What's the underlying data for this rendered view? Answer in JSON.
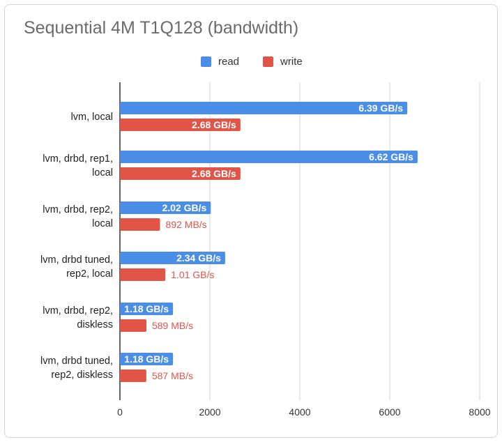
{
  "colors": {
    "read": "#4a8ee8",
    "write": "#e05548",
    "grid": "#d3d3d3",
    "axis": "#333333"
  },
  "chart_data": {
    "type": "bar",
    "orientation": "horizontal",
    "title": "Sequential 4M T1Q128 (bandwidth)",
    "xlabel": "",
    "ylabel": "",
    "xlim": [
      0,
      8000
    ],
    "x_ticks": [
      "0",
      "2000",
      "4000",
      "6000",
      "8000"
    ],
    "x_tick_values": [
      0,
      2000,
      4000,
      6000,
      8000
    ],
    "grid": true,
    "legend_position": "top",
    "categories": [
      [
        "lvm, local"
      ],
      [
        "lvm, drbd, rep1,",
        "local"
      ],
      [
        "lvm, drbd, rep2,",
        "local"
      ],
      [
        "lvm, drbd tuned,",
        "rep2, local"
      ],
      [
        "lvm, drbd, rep2,",
        "diskless"
      ],
      [
        "lvm, drbd tuned,",
        "rep2, diskless"
      ]
    ],
    "series": [
      {
        "name": "read",
        "values": [
          6390,
          6620,
          2020,
          2340,
          1180,
          1180
        ],
        "labels": [
          "6.39 GB/s",
          "6.62 GB/s",
          "2.02 GB/s",
          "2.34 GB/s",
          "1.18 GB/s",
          "1.18 GB/s"
        ],
        "label_inside": [
          true,
          true,
          true,
          true,
          true,
          true
        ]
      },
      {
        "name": "write",
        "values": [
          2680,
          2680,
          892,
          1010,
          589,
          587
        ],
        "labels": [
          "2.68 GB/s",
          "2.68 GB/s",
          "892  MB/s",
          "1.01 GB/s",
          "589  MB/s",
          "587  MB/s"
        ],
        "label_inside": [
          true,
          true,
          false,
          false,
          false,
          false
        ]
      }
    ]
  }
}
